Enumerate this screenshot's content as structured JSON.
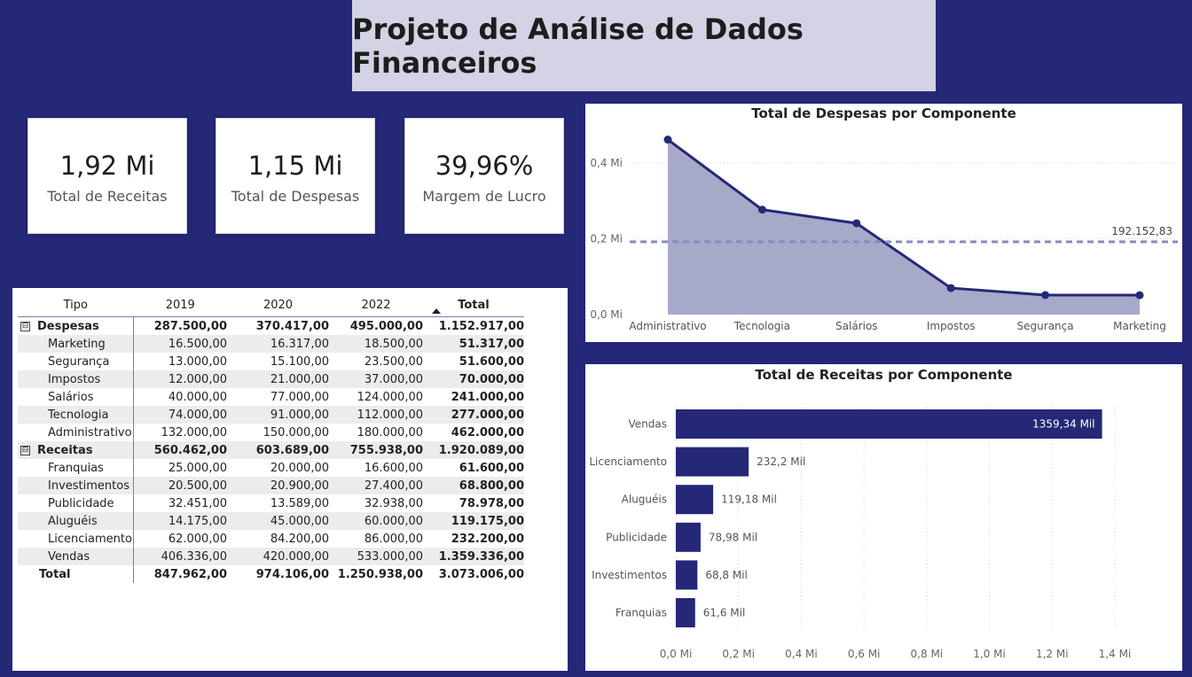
{
  "header": {
    "title": "Projeto de Análise de Dados Financeiros"
  },
  "kpis": [
    {
      "value": "1,92 Mi",
      "label": "Total de Receitas"
    },
    {
      "value": "1,15 Mi",
      "label": "Total de Despesas"
    },
    {
      "value": "39,96%",
      "label": "Margem de Lucro"
    }
  ],
  "matrix": {
    "headers": [
      "Tipo",
      "2019",
      "2020",
      "2022",
      "Total"
    ],
    "groups": [
      {
        "label": "Despesas",
        "expander": "⊟",
        "values": [
          "287.500,00",
          "370.417,00",
          "495.000,00",
          "1.152.917,00"
        ],
        "rows": [
          {
            "label": "Marketing",
            "values": [
              "16.500,00",
              "16.317,00",
              "18.500,00",
              "51.317,00"
            ]
          },
          {
            "label": "Segurança",
            "values": [
              "13.000,00",
              "15.100,00",
              "23.500,00",
              "51.600,00"
            ]
          },
          {
            "label": "Impostos",
            "values": [
              "12.000,00",
              "21.000,00",
              "37.000,00",
              "70.000,00"
            ]
          },
          {
            "label": "Salários",
            "values": [
              "40.000,00",
              "77.000,00",
              "124.000,00",
              "241.000,00"
            ]
          },
          {
            "label": "Tecnologia",
            "values": [
              "74.000,00",
              "91.000,00",
              "112.000,00",
              "277.000,00"
            ]
          },
          {
            "label": "Administrativo",
            "values": [
              "132.000,00",
              "150.000,00",
              "180.000,00",
              "462.000,00"
            ]
          }
        ]
      },
      {
        "label": "Receitas",
        "expander": "⊟",
        "values": [
          "560.462,00",
          "603.689,00",
          "755.938,00",
          "1.920.089,00"
        ],
        "rows": [
          {
            "label": "Franquias",
            "values": [
              "25.000,00",
              "20.000,00",
              "16.600,00",
              "61.600,00"
            ]
          },
          {
            "label": "Investimentos",
            "values": [
              "20.500,00",
              "20.900,00",
              "27.400,00",
              "68.800,00"
            ]
          },
          {
            "label": "Publicidade",
            "values": [
              "32.451,00",
              "13.589,00",
              "32.938,00",
              "78.978,00"
            ]
          },
          {
            "label": "Aluguéis",
            "values": [
              "14.175,00",
              "45.000,00",
              "60.000,00",
              "119.175,00"
            ]
          },
          {
            "label": "Licenciamento",
            "values": [
              "62.000,00",
              "84.200,00",
              "86.000,00",
              "232.200,00"
            ]
          },
          {
            "label": "Vendas",
            "values": [
              "406.336,00",
              "420.000,00",
              "533.000,00",
              "1.359.336,00"
            ]
          }
        ]
      }
    ],
    "total": {
      "label": "Total",
      "values": [
        "847.962,00",
        "974.106,00",
        "1.250.938,00",
        "3.073.006,00"
      ]
    }
  },
  "chart_data": [
    {
      "type": "area",
      "title": "Total de Despesas por Componente",
      "categories": [
        "Administrativo",
        "Tecnologia",
        "Salários",
        "Impostos",
        "Segurança",
        "Marketing"
      ],
      "values": [
        462000,
        277000,
        241000,
        70000,
        51600,
        51317
      ],
      "reference_line": {
        "value": 192152.83,
        "label": "192.152,83"
      },
      "y_ticks": [
        {
          "value": 0,
          "label": "0,0 Mi"
        },
        {
          "value": 200000,
          "label": "0,2 Mi"
        },
        {
          "value": 400000,
          "label": "0,4 Mi"
        }
      ],
      "ylim": [
        0,
        510000
      ],
      "grid": true,
      "colors": {
        "line": "#252877",
        "fill": "#a7a9c9",
        "ref": "#8a8bc0"
      }
    },
    {
      "type": "bar",
      "orientation": "horizontal",
      "title": "Total de Receitas por Componente",
      "categories": [
        "Vendas",
        "Licenciamento",
        "Aluguéis",
        "Publicidade",
        "Investimentos",
        "Franquias"
      ],
      "values": [
        1359336,
        232200,
        119175,
        78978,
        68800,
        61600
      ],
      "data_labels": [
        "1359,34 Mil",
        "232,2 Mil",
        "119,18 Mil",
        "78,98 Mil",
        "68,8 Mil",
        "61,6 Mil"
      ],
      "x_ticks": [
        {
          "value": 0,
          "label": "0,0 Mi"
        },
        {
          "value": 200000,
          "label": "0,2 Mi"
        },
        {
          "value": 400000,
          "label": "0,4 Mi"
        },
        {
          "value": 600000,
          "label": "0,6 Mi"
        },
        {
          "value": 800000,
          "label": "0,8 Mi"
        },
        {
          "value": 1000000,
          "label": "1,0 Mi"
        },
        {
          "value": 1200000,
          "label": "1,2 Mi"
        },
        {
          "value": 1400000,
          "label": "1,4 Mi"
        }
      ],
      "xlim": [
        0,
        1400000
      ],
      "grid": true,
      "colors": {
        "bar": "#252877"
      }
    }
  ]
}
